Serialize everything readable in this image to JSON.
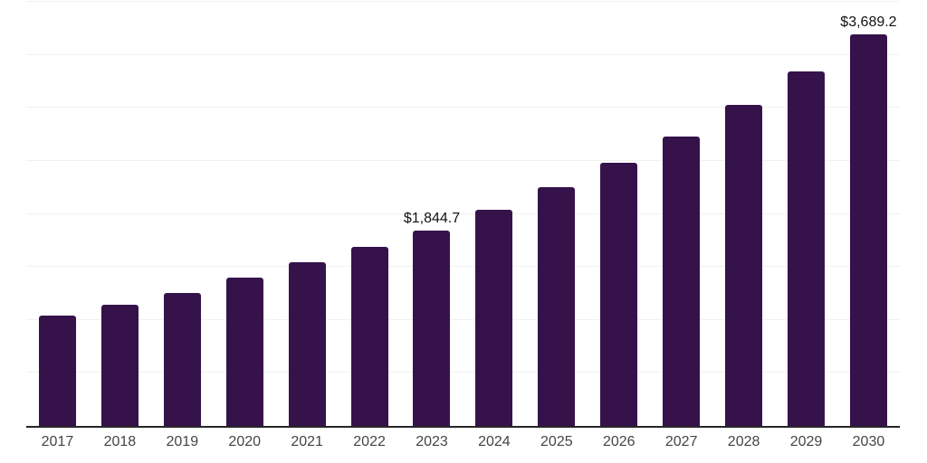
{
  "chart_data": {
    "type": "bar",
    "title": "",
    "xlabel": "",
    "ylabel": "",
    "categories": [
      "2017",
      "2018",
      "2019",
      "2020",
      "2021",
      "2022",
      "2023",
      "2024",
      "2025",
      "2026",
      "2027",
      "2028",
      "2029",
      "2030"
    ],
    "values": [
      1040,
      1145,
      1255,
      1395,
      1545,
      1690,
      1844.7,
      2040,
      2255,
      2485,
      2730,
      3025,
      3340,
      3689.2
    ],
    "data_labels": [
      "",
      "",
      "",
      "",
      "",
      "",
      "$1,844.7",
      "",
      "",
      "",
      "",
      "",
      "",
      "$3,689.2"
    ],
    "ylim": [
      0,
      4000
    ],
    "gridline_step": 500,
    "grid": true,
    "legend": false,
    "y_axis_labels_visible": false,
    "bar_color": "#36124B",
    "axis_line_color": "#262626",
    "gridline_color": "#f1f1f1",
    "value_label_color": "#111111",
    "tick_label_color": "#454545",
    "background_color": "#ffffff"
  }
}
